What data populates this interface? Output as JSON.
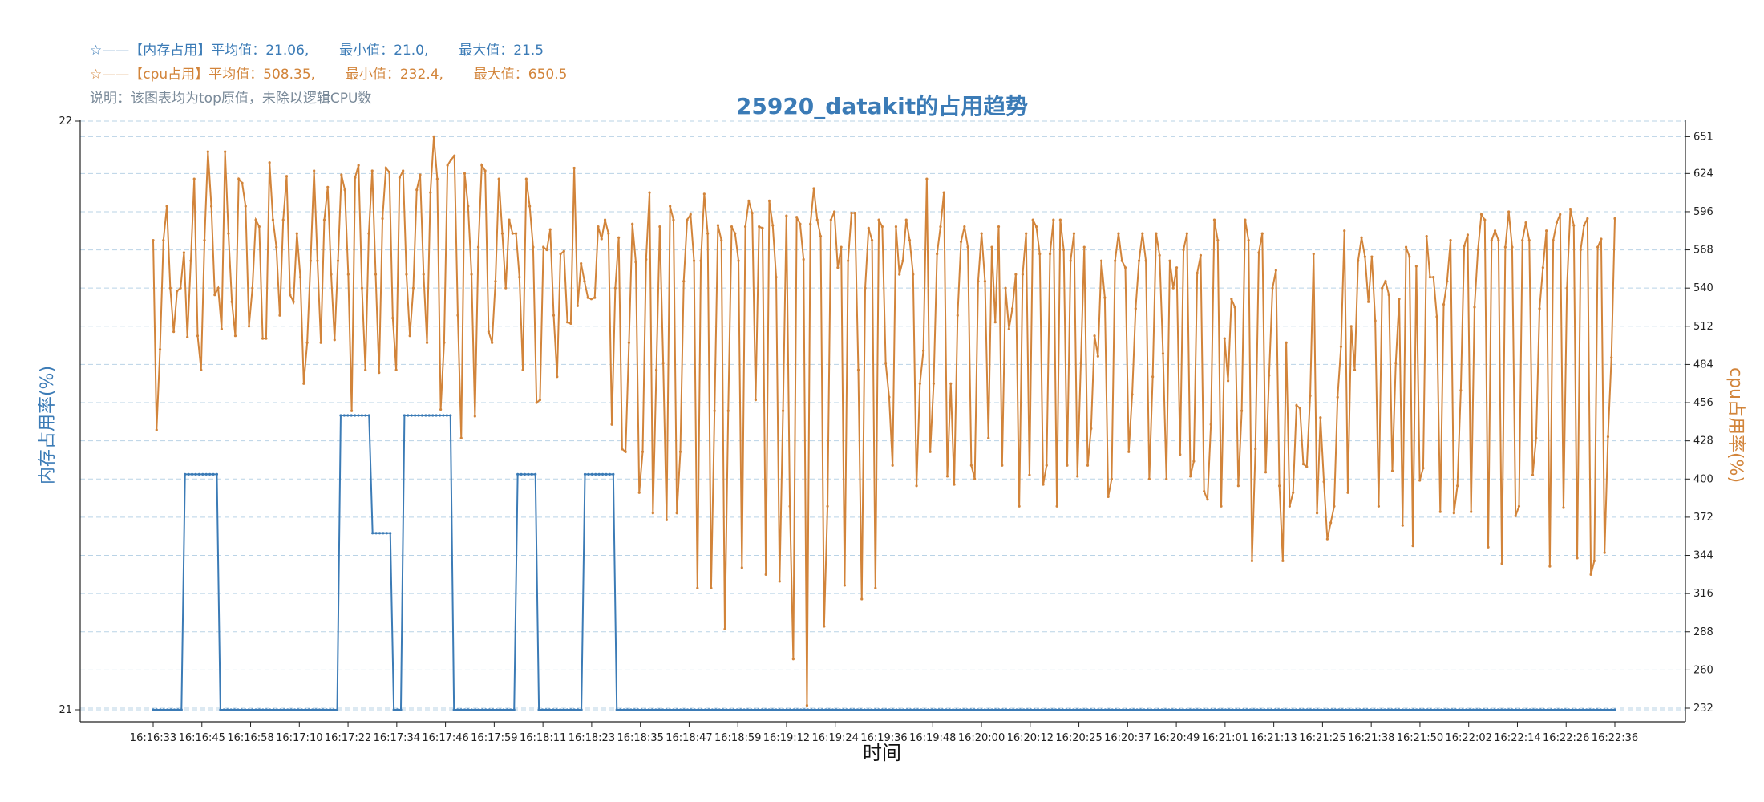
{
  "colors": {
    "memory": "#3b7bb6",
    "cpu": "#d2843a",
    "note": "#7a8a99",
    "grid": "#b9d3e6",
    "axis": "#222222"
  },
  "legend": {
    "memory_line": "☆——【内存占用】平均值：21.06,       最小值：21.0,       最大值：21.5",
    "cpu_line": "☆——【cpu占用】平均值：508.35,       最小值：232.4,       最大值：650.5",
    "note": "说明：该图表均为top原值，未除以逻辑CPU数"
  },
  "chart_data": {
    "type": "line",
    "title": "25920_datakit的占用趋势",
    "xlabel": "时间",
    "ylabel_left": "内存占用率(%)",
    "ylabel_right": "cpu占用率(%)",
    "ylim_left": [
      21,
      22
    ],
    "ylim_right": [
      222,
      663
    ],
    "yticks_left": [
      21,
      22
    ],
    "yticks_right": [
      232,
      260,
      288,
      316,
      344,
      372,
      400,
      428,
      456,
      484,
      512,
      540,
      568,
      596,
      624,
      651
    ],
    "x_tick_labels": [
      "16:16:33",
      "16:16:45",
      "16:16:58",
      "16:17:10",
      "16:17:22",
      "16:17:34",
      "16:17:46",
      "16:17:59",
      "16:18:11",
      "16:18:23",
      "16:18:35",
      "16:18:47",
      "16:18:59",
      "16:19:12",
      "16:19:24",
      "16:19:36",
      "16:19:48",
      "16:20:00",
      "16:20:12",
      "16:20:25",
      "16:20:37",
      "16:20:49",
      "16:21:01",
      "16:21:13",
      "16:21:25",
      "16:21:38",
      "16:21:50",
      "16:22:02",
      "16:22:14",
      "16:22:26",
      "16:22:36"
    ],
    "grid": true,
    "series": [
      {
        "name": "内存占用",
        "axis": "left",
        "color": "#3b7bb6",
        "values": [
          21,
          21,
          21,
          21,
          21,
          21,
          21,
          21,
          21,
          21.4,
          21.4,
          21.4,
          21.4,
          21.4,
          21.4,
          21.4,
          21.4,
          21.4,
          21.4,
          21,
          21,
          21,
          21,
          21,
          21,
          21,
          21,
          21,
          21,
          21,
          21,
          21,
          21,
          21,
          21,
          21,
          21,
          21,
          21,
          21,
          21,
          21,
          21,
          21,
          21,
          21,
          21,
          21,
          21,
          21,
          21,
          21,
          21,
          21.5,
          21.5,
          21.5,
          21.5,
          21.5,
          21.5,
          21.5,
          21.5,
          21.5,
          21.3,
          21.3,
          21.3,
          21.3,
          21.3,
          21.3,
          21,
          21,
          21,
          21.5,
          21.5,
          21.5,
          21.5,
          21.5,
          21.5,
          21.5,
          21.5,
          21.5,
          21.5,
          21.5,
          21.5,
          21.5,
          21.5,
          21,
          21,
          21,
          21,
          21,
          21,
          21,
          21,
          21,
          21,
          21,
          21,
          21,
          21,
          21,
          21,
          21,
          21,
          21.4,
          21.4,
          21.4,
          21.4,
          21.4,
          21.4,
          21,
          21,
          21,
          21,
          21,
          21,
          21,
          21,
          21,
          21,
          21,
          21,
          21,
          21.4,
          21.4,
          21.4,
          21.4,
          21.4,
          21.4,
          21.4,
          21.4,
          21.4,
          21,
          21,
          21,
          21,
          21,
          21,
          21,
          21,
          21,
          21,
          21,
          21,
          21,
          21,
          21,
          21,
          21,
          21,
          21,
          21,
          21,
          21,
          21,
          21,
          21,
          21,
          21,
          21,
          21,
          21,
          21,
          21,
          21,
          21,
          21,
          21,
          21,
          21,
          21,
          21,
          21,
          21,
          21,
          21,
          21,
          21,
          21,
          21,
          21,
          21,
          21,
          21,
          21,
          21,
          21,
          21,
          21,
          21,
          21,
          21,
          21,
          21,
          21,
          21,
          21,
          21,
          21,
          21,
          21,
          21,
          21,
          21,
          21,
          21,
          21,
          21,
          21,
          21,
          21,
          21,
          21,
          21,
          21,
          21,
          21,
          21,
          21,
          21,
          21,
          21,
          21,
          21,
          21,
          21,
          21,
          21,
          21,
          21,
          21,
          21,
          21,
          21,
          21,
          21,
          21,
          21,
          21,
          21,
          21,
          21,
          21,
          21,
          21,
          21,
          21,
          21,
          21,
          21,
          21,
          21,
          21,
          21,
          21,
          21,
          21,
          21,
          21,
          21,
          21,
          21,
          21,
          21,
          21,
          21,
          21,
          21,
          21,
          21,
          21,
          21,
          21,
          21,
          21,
          21,
          21,
          21,
          21,
          21,
          21,
          21,
          21,
          21,
          21,
          21,
          21,
          21,
          21,
          21,
          21,
          21,
          21,
          21,
          21,
          21,
          21,
          21,
          21,
          21,
          21,
          21,
          21,
          21,
          21,
          21,
          21,
          21,
          21,
          21,
          21,
          21,
          21,
          21,
          21,
          21,
          21,
          21,
          21,
          21,
          21,
          21,
          21,
          21,
          21,
          21,
          21,
          21,
          21,
          21,
          21,
          21,
          21,
          21,
          21,
          21,
          21,
          21,
          21,
          21,
          21,
          21,
          21,
          21,
          21,
          21,
          21,
          21,
          21,
          21,
          21,
          21,
          21,
          21,
          21,
          21,
          21,
          21,
          21,
          21,
          21,
          21,
          21,
          21,
          21,
          21,
          21,
          21,
          21,
          21,
          21,
          21,
          21,
          21,
          21,
          21,
          21,
          21,
          21,
          21,
          21,
          21,
          21,
          21,
          21,
          21,
          21,
          21,
          21,
          21,
          21,
          21,
          21,
          21,
          21,
          21,
          21,
          21,
          21,
          21,
          21,
          21,
          21,
          21,
          21,
          21,
          21,
          21,
          21,
          21,
          21,
          21,
          21,
          21,
          21
        ]
      },
      {
        "name": "cpu占用",
        "axis": "right",
        "color": "#d2843a",
        "values": [
          575,
          436,
          495,
          575,
          600,
          540,
          508,
          538,
          540,
          566,
          504,
          560,
          620,
          505,
          480,
          575,
          640,
          600,
          535,
          540,
          510,
          640,
          580,
          530,
          505,
          620,
          617,
          600,
          512,
          540,
          590,
          585,
          503,
          503,
          632,
          590,
          570,
          520,
          590,
          622,
          535,
          530,
          580,
          548,
          470,
          500,
          560,
          626,
          560,
          500,
          590,
          614,
          550,
          502,
          560,
          623,
          612,
          550,
          450,
          621,
          630,
          540,
          480,
          580,
          626,
          550,
          478,
          591,
          628,
          625,
          518,
          480,
          621,
          626,
          550,
          505,
          540,
          612,
          623,
          550,
          500,
          610,
          651,
          620,
          451,
          500,
          630,
          634,
          637,
          520,
          430,
          624,
          600,
          550,
          446,
          570,
          630,
          626,
          508,
          500,
          545,
          620,
          580,
          540,
          590,
          580,
          580,
          548,
          480,
          620,
          600,
          570,
          456,
          458,
          570,
          568,
          583,
          520,
          475,
          565,
          567,
          515,
          514,
          628,
          527,
          558,
          545,
          533,
          532,
          533,
          585,
          576,
          590,
          580,
          440,
          540,
          577,
          422,
          420,
          500,
          587,
          559,
          390,
          420,
          561,
          610,
          375,
          480,
          585,
          485,
          370,
          600,
          590,
          375,
          420,
          545,
          590,
          594,
          560,
          320,
          560,
          609,
          580,
          320,
          450,
          586,
          575,
          290,
          450,
          585,
          580,
          560,
          335,
          585,
          604,
          595,
          458,
          585,
          584,
          330,
          604,
          586,
          548,
          325,
          450,
          593,
          380,
          268,
          592,
          587,
          561,
          234,
          587,
          613,
          590,
          578,
          292,
          380,
          590,
          596,
          555,
          570,
          322,
          560,
          595,
          595,
          480,
          312,
          540,
          584,
          575,
          320,
          590,
          585,
          485,
          460,
          410,
          585,
          550,
          560,
          590,
          575,
          550,
          395,
          470,
          494,
          620,
          420,
          470,
          565,
          585,
          610,
          402,
          470,
          396,
          520,
          574,
          585,
          570,
          410,
          400,
          545,
          580,
          545,
          430,
          570,
          515,
          585,
          410,
          540,
          510,
          525,
          550,
          380,
          550,
          580,
          403,
          590,
          585,
          565,
          396,
          410,
          565,
          590,
          380,
          590,
          568,
          410,
          560,
          580,
          402,
          485,
          570,
          410,
          437,
          505,
          490,
          560,
          533,
          387,
          400,
          560,
          580,
          560,
          555,
          420,
          462,
          525,
          560,
          580,
          560,
          400,
          475,
          580,
          564,
          492,
          400,
          560,
          540,
          555,
          418,
          568,
          580,
          402,
          413,
          551,
          564,
          391,
          385,
          440,
          590,
          575,
          380,
          503,
          472,
          532,
          526,
          395,
          450,
          590,
          575,
          340,
          422,
          566,
          580,
          405,
          476,
          540,
          553,
          395,
          340,
          500,
          380,
          390,
          454,
          452,
          411,
          409,
          461,
          565,
          375,
          445,
          398,
          356,
          368,
          380,
          460,
          497,
          582,
          390,
          512,
          480,
          560,
          577,
          563,
          530,
          563,
          516,
          380,
          540,
          545,
          535,
          406,
          485,
          532,
          366,
          570,
          563,
          351,
          556,
          399,
          408,
          578,
          548,
          548,
          519,
          376,
          528,
          545,
          575,
          375,
          395,
          465,
          571,
          579,
          376,
          526,
          568,
          594,
          590,
          350,
          575,
          582,
          575,
          338,
          570,
          596,
          570,
          373,
          380,
          575,
          588,
          575,
          403,
          430,
          525,
          555,
          582,
          336,
          575,
          588,
          594,
          379,
          540,
          598,
          586,
          342,
          568,
          586,
          591,
          330,
          340,
          570,
          576,
          346,
          431,
          489,
          591
        ]
      }
    ]
  }
}
